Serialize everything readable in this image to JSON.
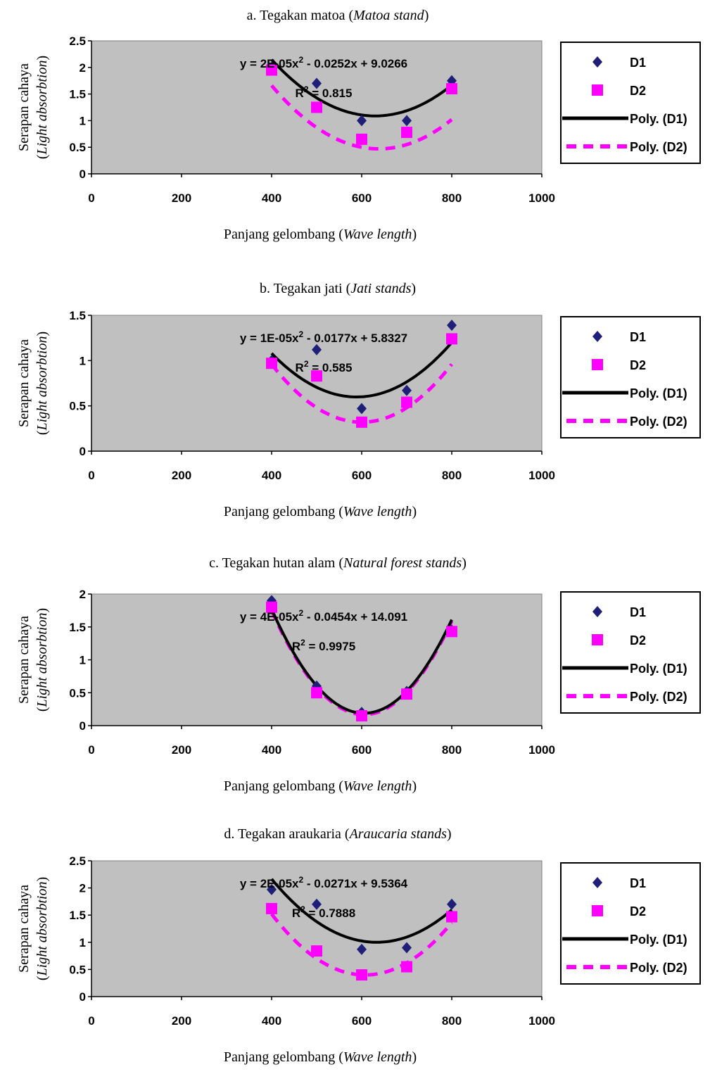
{
  "chart_data": [
    {
      "type": "scatter",
      "title": "a. Tegakan matoa (",
      "title_italic": "Matoa stand",
      "title_end": ")",
      "ylabel": "Serapan cahaya",
      "ylabel_open": "(",
      "ylabel_italic": "Light absorbtion",
      "ylabel_close": ")",
      "xlabel": "Panjang gelombang (",
      "xlabel_italic": "Wave length",
      "xlabel_end": ")",
      "xlim": [
        0,
        1000
      ],
      "ylim": [
        0,
        2.5
      ],
      "xticks": [
        0,
        200,
        400,
        600,
        800,
        1000
      ],
      "yticks": [
        0,
        0.5,
        1,
        1.5,
        2,
        2.5
      ],
      "ytick_labels": [
        "0",
        "0.5",
        "1",
        "1.5",
        "2",
        "2.5"
      ],
      "x": [
        400,
        500,
        600,
        700,
        800
      ],
      "series": [
        {
          "name": "D1",
          "values": [
            2.0,
            1.7,
            1.0,
            1.0,
            1.75
          ],
          "color": "#1f1f7a",
          "marker": "diamond"
        },
        {
          "name": "D2",
          "values": [
            1.95,
            1.25,
            0.65,
            0.78,
            1.6
          ],
          "color": "#ff00ff",
          "marker": "square"
        }
      ],
      "trendlines": [
        {
          "name": "Poly. (D1)",
          "coef": [
            2e-05,
            -0.0252,
            9.0266
          ],
          "color": "#000000",
          "style": "solid"
        },
        {
          "name": "Poly. (D2)",
          "coef": [
            2.1e-05,
            -0.0268,
            9.02
          ],
          "color": "#ff00ff",
          "style": "dashed"
        }
      ],
      "annotation_eq_a": "y = 2E-05x",
      "annotation_eq_b": " - 0.0252x + 9.0266",
      "annotation_r2_a": "R",
      "annotation_r2_b": " = 0.815",
      "superscript": "2",
      "grid": false,
      "legend_position": "right",
      "plot_background": "#c0c0c0"
    },
    {
      "type": "scatter",
      "title": "b. Tegakan jati (",
      "title_italic": "Jati stands",
      "title_end": ")",
      "ylabel": "Serapan cahaya",
      "ylabel_open": "(",
      "ylabel_italic": "Light absorbtion",
      "ylabel_close": ")",
      "xlabel": "Panjang gelombang (",
      "xlabel_italic": "Wave length",
      "xlabel_end": ")",
      "xlim": [
        0,
        1000
      ],
      "ylim": [
        0,
        1.5
      ],
      "xticks": [
        0,
        200,
        400,
        600,
        800,
        1000
      ],
      "yticks": [
        0,
        0.5,
        1,
        1.5
      ],
      "ytick_labels": [
        "0",
        "0.5",
        "1",
        "1.5"
      ],
      "x": [
        400,
        500,
        600,
        700,
        800
      ],
      "series": [
        {
          "name": "D1",
          "values": [
            1.0,
            1.12,
            0.47,
            0.67,
            1.39
          ],
          "color": "#1f1f7a",
          "marker": "diamond"
        },
        {
          "name": "D2",
          "values": [
            0.97,
            0.83,
            0.32,
            0.54,
            1.24
          ],
          "color": "#ff00ff",
          "marker": "square"
        }
      ],
      "trendlines": [
        {
          "name": "Poly. (D1)",
          "coef": [
            1.35e-05,
            -0.0159,
            5.28
          ],
          "color": "#000000",
          "style": "solid"
        },
        {
          "name": "Poly. (D2)",
          "coef": [
            1.6e-05,
            -0.0192,
            6.08
          ],
          "color": "#ff00ff",
          "style": "dashed"
        }
      ],
      "annotation_eq_a": "y = 1E-05x",
      "annotation_eq_b": " - 0.0177x + 5.8327",
      "annotation_r2_a": "R",
      "annotation_r2_b": " = 0.585",
      "superscript": "2",
      "grid": false,
      "legend_position": "right",
      "plot_background": "#c0c0c0"
    },
    {
      "type": "scatter",
      "title": "c. Tegakan hutan alam (",
      "title_italic": "Natural forest stands",
      "title_end": ")",
      "ylabel": "Serapan cahaya",
      "ylabel_open": "(",
      "ylabel_italic": "Light absorbtion",
      "ylabel_close": ")",
      "xlabel": "Panjang gelombang (",
      "xlabel_italic": "Wave length",
      "xlabel_end": ")",
      "xlim": [
        0,
        1000
      ],
      "ylim": [
        0,
        2
      ],
      "xticks": [
        0,
        200,
        400,
        600,
        800,
        1000
      ],
      "yticks": [
        0,
        0.5,
        1,
        1.5,
        2
      ],
      "ytick_labels": [
        "0",
        "0.5",
        "1",
        "1.5",
        "2"
      ],
      "x": [
        400,
        500,
        600,
        700,
        800
      ],
      "series": [
        {
          "name": "D1",
          "values": [
            1.9,
            0.6,
            0.2,
            0.52,
            1.45
          ],
          "color": "#1f1f7a",
          "marker": "diamond"
        },
        {
          "name": "D2",
          "values": [
            1.8,
            0.5,
            0.15,
            0.48,
            1.43
          ],
          "color": "#ff00ff",
          "marker": "square"
        }
      ],
      "trendlines": [
        {
          "name": "Poly. (D1)",
          "coef": [
            3.75e-05,
            -0.0454,
            13.93
          ],
          "color": "#000000",
          "style": "solid"
        },
        {
          "name": "Poly. (D2)",
          "coef": [
            3.75e-05,
            -0.0454,
            13.91
          ],
          "color": "#ff00ff",
          "style": "dashed"
        }
      ],
      "annotation_eq_a": "y = 4E-05x",
      "annotation_eq_b": " - 0.0454x + 14.091",
      "annotation_r2_a": "R",
      "annotation_r2_b": " = 0.9975",
      "superscript": "2",
      "grid": false,
      "legend_position": "right",
      "plot_background": "#c0c0c0"
    },
    {
      "type": "scatter",
      "title": "d. Tegakan araukaria (",
      "title_italic": "Araucaria stands",
      "title_end": ")",
      "ylabel": "Serapan cahaya",
      "ylabel_open": "(",
      "ylabel_italic": "Light absorbtion",
      "ylabel_close": ")",
      "xlabel": "Panjang gelombang (",
      "xlabel_italic": "Wave length",
      "xlabel_end": ")",
      "xlim": [
        0,
        1000
      ],
      "ylim": [
        0,
        2.5
      ],
      "xticks": [
        0,
        200,
        400,
        600,
        800,
        1000
      ],
      "yticks": [
        0,
        0.5,
        1,
        1.5,
        2,
        2.5
      ],
      "ytick_labels": [
        "0",
        "0.5",
        "1",
        "1.5",
        "2",
        "2.5"
      ],
      "x": [
        400,
        500,
        600,
        700,
        800
      ],
      "series": [
        {
          "name": "D1",
          "values": [
            1.97,
            1.7,
            0.87,
            0.9,
            1.7
          ],
          "color": "#1f1f7a",
          "marker": "diamond"
        },
        {
          "name": "D2",
          "values": [
            1.62,
            0.84,
            0.4,
            0.55,
            1.47
          ],
          "color": "#ff00ff",
          "marker": "square"
        }
      ],
      "trendlines": [
        {
          "name": "Poly. (D1)",
          "coef": [
            2.14e-05,
            -0.0271,
            9.58
          ],
          "color": "#000000",
          "style": "solid"
        },
        {
          "name": "Poly. (D2)",
          "coef": [
            2.6e-05,
            -0.0316,
            10.0
          ],
          "color": "#ff00ff",
          "style": "dashed"
        }
      ],
      "annotation_eq_a": "y = 2E-05x",
      "annotation_eq_b": " - 0.0271x + 9.5364",
      "annotation_r2_a": "R",
      "annotation_r2_b": " = 0.7888",
      "superscript": "2",
      "grid": false,
      "legend_position": "right",
      "plot_background": "#c0c0c0"
    }
  ]
}
